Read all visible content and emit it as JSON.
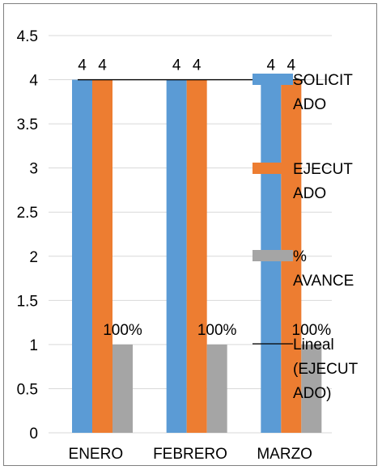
{
  "chart_data": {
    "type": "bar",
    "categories": [
      "ENERO",
      "FEBRERO",
      "MARZO"
    ],
    "series": [
      {
        "name": "SOLICITADO",
        "values": [
          4,
          4,
          4
        ],
        "color": "#5B9BD5",
        "labels": [
          "4",
          "4",
          "4"
        ]
      },
      {
        "name": "EJECUTADO",
        "values": [
          4,
          4,
          4
        ],
        "color": "#ED7D31",
        "labels": [
          "4",
          "4",
          "4"
        ]
      },
      {
        "name": "% AVANCE",
        "values": [
          1,
          1,
          1
        ],
        "color": "#A5A5A5",
        "labels": [
          "100%",
          "100%",
          "100%"
        ]
      }
    ],
    "trendline": {
      "name": "Lineal (EJECUTADO)",
      "value": 4,
      "color": "#000000"
    },
    "ylim": [
      0,
      4.5
    ],
    "yticks": [
      "0",
      "0.5",
      "1",
      "1.5",
      "2",
      "2.5",
      "3",
      "3.5",
      "4",
      "4.5"
    ],
    "grid": true,
    "legend_position": "right",
    "legend_lines": [
      {
        "key": "SOLICITADO",
        "lines": [
          "SOLICIT",
          "ADO"
        ]
      },
      {
        "key": "EJECUTADO",
        "lines": [
          "EJECUT",
          "ADO"
        ]
      },
      {
        "key": "% AVANCE",
        "lines": [
          "%",
          "AVANCE"
        ]
      },
      {
        "key": "Lineal (EJECUTADO)",
        "lines": [
          "Lineal",
          "(EJECUT",
          "ADO)"
        ]
      }
    ],
    "title": "",
    "xlabel": "",
    "ylabel": ""
  }
}
